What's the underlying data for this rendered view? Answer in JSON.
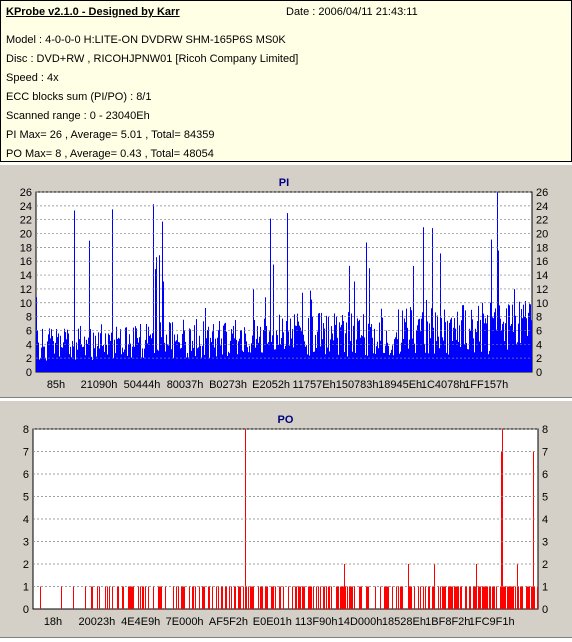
{
  "header": {
    "title": "KProbe v2.1.0 - Designed by Karr",
    "date": "Date : 2006/04/11 21:43:11",
    "lines": [
      "Model : 4-0-0-0 H:LITE-ON DVDRW SHM-165P6S MS0K",
      "Disc : DVD+RW , RICOHJPNW01 [Ricoh Company Limited]",
      "Speed : 4x",
      "ECC blocks sum (PI/PO) : 8/1",
      "Scanned range : 0 - 23040Eh",
      "PI Max= 26 , Average= 5.01 , Total= 84359",
      "PO Max= 8 , Average= 0.43 , Total= 48054"
    ]
  },
  "colors": {
    "pi": "#0000ff",
    "po": "#ff0000",
    "plot_bg": "#ffffff",
    "panel_bg": "#d4d0c8"
  },
  "chart_data": [
    {
      "type": "bar",
      "title": "PI",
      "ylim": [
        0,
        26
      ],
      "yticks": [
        0,
        2,
        4,
        6,
        8,
        10,
        12,
        14,
        16,
        18,
        20,
        22,
        24,
        26
      ],
      "xtick_labels": [
        "85h",
        "21090h",
        "50444h",
        "80037h",
        "B0273h",
        "E2052h",
        "11757Eh",
        "150783h",
        "18945Eh",
        "1C4078h",
        "1FF157h"
      ],
      "max": 26,
      "average": 5.01,
      "grid": true
    },
    {
      "type": "bar",
      "title": "PO",
      "ylim": [
        0,
        8
      ],
      "yticks": [
        0,
        1,
        2,
        3,
        4,
        5,
        6,
        7,
        8
      ],
      "xtick_labels": [
        "18h",
        "20023h",
        "4E4E9h",
        "7E000h",
        "AF5F2h",
        "E0E01h",
        "113F90h",
        "14D000h",
        "18528Eh",
        "1BF8F2h",
        "1FC9F1h"
      ],
      "max": 8,
      "average": 0.43,
      "grid": true
    }
  ]
}
